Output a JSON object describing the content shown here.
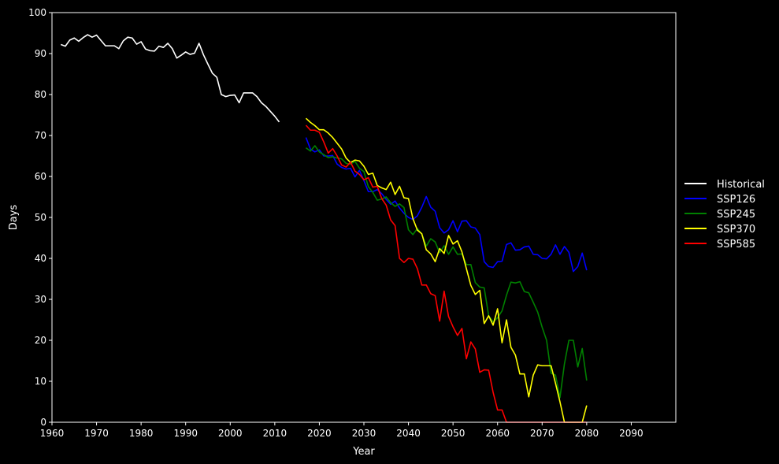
{
  "chart_data": {
    "type": "line",
    "title": "",
    "xlabel": "Year",
    "ylabel": "Days",
    "xlim": [
      1960,
      2100
    ],
    "ylim": [
      0,
      100
    ],
    "xticks": [
      1960,
      1970,
      1980,
      1990,
      2000,
      2010,
      2020,
      2030,
      2040,
      2050,
      2060,
      2070,
      2080,
      2090
    ],
    "yticks": [
      0,
      10,
      20,
      30,
      40,
      50,
      60,
      70,
      80,
      90,
      100
    ],
    "grid": false,
    "legend_position": "right",
    "background": "#000000",
    "series": [
      {
        "name": "Historical",
        "color": "#ffffff",
        "x": [
          1962,
          1963,
          1964,
          1965,
          1966,
          1967,
          1968,
          1969,
          1970,
          1971,
          1972,
          1973,
          1974,
          1975,
          1976,
          1977,
          1978,
          1979,
          1980,
          1981,
          1982,
          1983,
          1984,
          1985,
          1986,
          1987,
          1988,
          1989,
          1990,
          1991,
          1992,
          1993,
          1994,
          1995,
          1996,
          1997,
          1998,
          1999,
          2000,
          2001,
          2002,
          2003,
          2004,
          2005,
          2006,
          2007,
          2008,
          2009,
          2010,
          2011
        ],
        "y": [
          92.2,
          91.8,
          93.3,
          93.8,
          93,
          93.9,
          94.6,
          94,
          94.5,
          93.2,
          91.9,
          91.9,
          91.9,
          91.2,
          93.1,
          94,
          93.8,
          92.3,
          92.9,
          91.1,
          90.7,
          90.6,
          91.8,
          91.5,
          92.5,
          91.2,
          88.9,
          89.6,
          90.4,
          89.8,
          90.1,
          92.5,
          89.7,
          87.4,
          85.2,
          84.2,
          80,
          79.5,
          79.8,
          79.9,
          78,
          80.4,
          80.4,
          80.4,
          79.5,
          78,
          77.1,
          75.9,
          74.7,
          73.3
        ]
      },
      {
        "name": "SSP126",
        "color": "#0000ff",
        "x": [
          2017,
          2018,
          2019,
          2020,
          2021,
          2022,
          2023,
          2024,
          2025,
          2026,
          2027,
          2028,
          2029,
          2030,
          2031,
          2032,
          2033,
          2034,
          2035,
          2036,
          2037,
          2038,
          2039,
          2040,
          2041,
          2042,
          2043,
          2044,
          2045,
          2046,
          2047,
          2048,
          2049,
          2050,
          2051,
          2052,
          2053,
          2054,
          2055,
          2056,
          2057,
          2058,
          2059,
          2060,
          2061,
          2062,
          2063,
          2064,
          2065,
          2066,
          2067,
          2068,
          2069,
          2070,
          2071,
          2072,
          2073,
          2074,
          2075,
          2076,
          2077,
          2078,
          2079,
          2080
        ],
        "y": [
          69.5,
          66.7,
          66,
          66.5,
          65,
          65,
          65.1,
          63,
          62.2,
          61.8,
          62,
          59.9,
          61.5,
          59,
          56.3,
          56.3,
          56.8,
          55.8,
          54.4,
          53.2,
          54,
          52.3,
          51,
          50,
          49.5,
          50.4,
          52.5,
          55.1,
          52.5,
          51.5,
          47.5,
          46.2,
          47,
          49.2,
          46.5,
          49.1,
          49.2,
          47.7,
          47.4,
          45.8,
          39.2,
          38,
          37.8,
          39.2,
          39.3,
          43.4,
          43.8,
          42,
          42.1,
          42.8,
          43,
          41,
          40.9,
          40,
          39.9,
          41,
          43.3,
          41,
          42.9,
          41.5,
          36.8,
          38,
          41.3,
          37.1
        ]
      },
      {
        "name": "SSP245",
        "color": "#008000",
        "x": [
          2017,
          2018,
          2019,
          2020,
          2021,
          2022,
          2023,
          2024,
          2025,
          2026,
          2027,
          2028,
          2029,
          2030,
          2031,
          2032,
          2033,
          2034,
          2035,
          2036,
          2037,
          2038,
          2039,
          2040,
          2041,
          2042,
          2043,
          2044,
          2045,
          2046,
          2047,
          2048,
          2049,
          2050,
          2051,
          2052,
          2053,
          2054,
          2055,
          2056,
          2057,
          2058,
          2059,
          2060,
          2061,
          2062,
          2063,
          2064,
          2065,
          2066,
          2067,
          2068,
          2069,
          2070,
          2071,
          2072,
          2073,
          2074,
          2075,
          2076,
          2077,
          2078,
          2079,
          2080
        ],
        "y": [
          67,
          66.2,
          67.5,
          66,
          65.3,
          64.6,
          64.8,
          64.5,
          64.3,
          63.2,
          63,
          63.7,
          62,
          61.2,
          57.5,
          56.1,
          54.2,
          54.5,
          55,
          53.6,
          52.7,
          53.3,
          52.4,
          47,
          45.8,
          47.3,
          45.9,
          43,
          44.8,
          44,
          41.4,
          43.1,
          41,
          42.8,
          41,
          41.1,
          38.5,
          38.5,
          34.1,
          33,
          32.8,
          26,
          24.5,
          25.5,
          27.2,
          31,
          34.2,
          34,
          34.3,
          31.9,
          31.6,
          29.3,
          26.9,
          23.2,
          20,
          12,
          11.5,
          6,
          14.2,
          20,
          20,
          13.5,
          18,
          10.2
        ]
      },
      {
        "name": "SSP370",
        "color": "#ffff00",
        "x": [
          2017,
          2018,
          2019,
          2020,
          2021,
          2022,
          2023,
          2024,
          2025,
          2026,
          2027,
          2028,
          2029,
          2030,
          2031,
          2032,
          2033,
          2034,
          2035,
          2036,
          2037,
          2038,
          2039,
          2040,
          2041,
          2042,
          2043,
          2044,
          2045,
          2046,
          2047,
          2048,
          2049,
          2050,
          2051,
          2052,
          2053,
          2054,
          2055,
          2056,
          2057,
          2058,
          2059,
          2060,
          2061,
          2062,
          2063,
          2064,
          2065,
          2066,
          2067,
          2068,
          2069,
          2070,
          2071,
          2072,
          2073,
          2074,
          2075,
          2076,
          2077,
          2078,
          2079,
          2080
        ],
        "y": [
          74.2,
          73.2,
          72.4,
          71.4,
          71.4,
          70.6,
          69.5,
          68.1,
          66.7,
          64.5,
          63.4,
          64,
          63.8,
          62.5,
          60.5,
          60.8,
          57.8,
          57.2,
          56.8,
          58.6,
          55.6,
          57.6,
          54.8,
          54.6,
          49.7,
          46.9,
          46,
          42.1,
          41.1,
          39.2,
          42.4,
          41.2,
          45.6,
          43.5,
          44.3,
          41.6,
          37.5,
          33.4,
          31.2,
          32.2,
          24.1,
          26,
          23.7,
          27.7,
          19.4,
          25,
          18.3,
          16.4,
          11.8,
          11.8,
          6.2,
          11.5,
          14,
          13.8,
          13.8,
          13.8,
          9.5,
          5,
          0,
          0,
          0,
          0,
          0,
          4.1
        ]
      },
      {
        "name": "SSP585",
        "color": "#ff0000",
        "x": [
          2017,
          2018,
          2019,
          2020,
          2021,
          2022,
          2023,
          2024,
          2025,
          2026,
          2027,
          2028,
          2029,
          2030,
          2031,
          2032,
          2033,
          2034,
          2035,
          2036,
          2037,
          2038,
          2039,
          2040,
          2041,
          2042,
          2043,
          2044,
          2045,
          2046,
          2047,
          2048,
          2049,
          2050,
          2051,
          2052,
          2053,
          2054,
          2055,
          2056,
          2057,
          2058,
          2059,
          2060,
          2061,
          2062,
          2063,
          2064,
          2065,
          2066,
          2067,
          2068,
          2069,
          2070,
          2071,
          2072,
          2073,
          2074,
          2075,
          2076,
          2077,
          2078,
          2079,
          2080
        ],
        "y": [
          72.5,
          71.3,
          71.3,
          70.8,
          68.4,
          65.7,
          66.8,
          65,
          62.8,
          62.3,
          63.5,
          61.3,
          60.5,
          59.2,
          59.7,
          57.4,
          57.6,
          54.6,
          53,
          49.4,
          48,
          40,
          39,
          40,
          39.8,
          37.5,
          33.5,
          33.5,
          31.4,
          30.9,
          24.7,
          32,
          25.8,
          23.3,
          21.2,
          22.9,
          15.5,
          19.6,
          17.9,
          12.2,
          12.8,
          12.7,
          7.3,
          3,
          3,
          0,
          0,
          0,
          0,
          0,
          0,
          0,
          0,
          0,
          0,
          0,
          0,
          0,
          0,
          0,
          0,
          0,
          0,
          0
        ]
      }
    ]
  }
}
